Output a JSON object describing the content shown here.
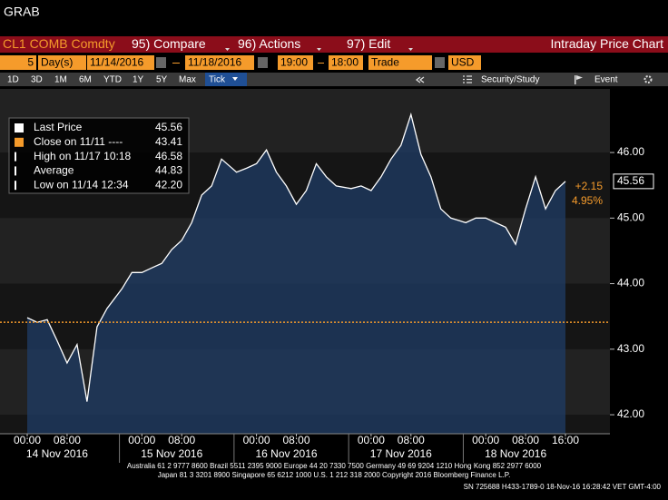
{
  "header": {
    "title": "GRAB"
  },
  "menu": {
    "ticker": "CL1 COMB Comdty",
    "items": [
      "95) Compare",
      "96) Actions",
      "97) Edit"
    ],
    "chart_name": "Intraday Price Chart"
  },
  "controls": {
    "days": "5",
    "unit": "Day(s)",
    "start": "11/14/2016",
    "end": "11/18/2016",
    "from": "19:00",
    "to": "18:00",
    "field": "Trade",
    "currency": "USD"
  },
  "ranges": [
    "1D",
    "3D",
    "1M",
    "6M",
    "YTD",
    "1Y",
    "5Y",
    "Max",
    "Tick"
  ],
  "tools": [
    "Security/Study",
    "Event"
  ],
  "footer": [
    "Australia 61 2 9777 8600 Brazil 5511 2395 9000 Europe 44 20 7330 7500 Germany 49 69 9204 1210 Hong Kong 852 2977 6000",
    "Japan 81 3 3201 8900     Singapore 65 6212 1000     U.S. 1 212 318 2000     Copyright 2016 Bloomberg Finance L.P.",
    "SN 725688 H433-1789-0 18-Nov-16 16:28:42 VET   GMT-4:00"
  ],
  "chart_data": {
    "type": "line",
    "x": [
      "14 Nov 2016 00:00",
      "14 Nov 2016 02:00",
      "14 Nov 2016 04:00",
      "14 Nov 2016 06:00",
      "14 Nov 2016 08:00",
      "14 Nov 2016 10:00",
      "14 Nov 2016 12:00",
      "14 Nov 2016 14:00",
      "14 Nov 2016 16:00",
      "14 Nov 2016 20:00",
      "14 Nov 2016 22:00",
      "15 Nov 2016 00:00",
      "15 Nov 2016 02:00",
      "15 Nov 2016 04:00",
      "15 Nov 2016 06:00",
      "15 Nov 2016 08:00",
      "15 Nov 2016 10:00",
      "15 Nov 2016 12:00",
      "15 Nov 2016 14:00",
      "15 Nov 2016 16:00",
      "15 Nov 2016 20:00",
      "15 Nov 2016 22:00",
      "16 Nov 2016 00:00",
      "16 Nov 2016 02:00",
      "16 Nov 2016 04:00",
      "16 Nov 2016 06:00",
      "16 Nov 2016 08:00",
      "16 Nov 2016 10:00",
      "16 Nov 2016 12:00",
      "16 Nov 2016 14:00",
      "16 Nov 2016 16:00",
      "16 Nov 2016 20:00",
      "16 Nov 2016 22:00",
      "17 Nov 2016 00:00",
      "17 Nov 2016 02:00",
      "17 Nov 2016 04:00",
      "17 Nov 2016 06:00",
      "17 Nov 2016 08:00",
      "17 Nov 2016 10:00",
      "17 Nov 2016 12:00",
      "17 Nov 2016 14:00",
      "17 Nov 2016 16:00",
      "17 Nov 2016 20:00",
      "17 Nov 2016 22:00",
      "18 Nov 2016 00:00",
      "18 Nov 2016 02:00",
      "18 Nov 2016 04:00",
      "18 Nov 2016 06:00",
      "18 Nov 2016 08:00",
      "18 Nov 2016 10:00",
      "18 Nov 2016 12:00",
      "18 Nov 2016 14:00",
      "18 Nov 2016 16:00"
    ],
    "series": [
      {
        "name": "Last Price",
        "color": "#ffffff",
        "fill": "#1f3c66",
        "values": [
          43.48,
          43.41,
          43.45,
          43.13,
          42.79,
          43.07,
          42.2,
          43.34,
          43.62,
          43.92,
          44.17,
          44.17,
          44.24,
          44.31,
          44.52,
          44.66,
          44.93,
          45.35,
          45.49,
          45.9,
          45.7,
          45.76,
          45.83,
          46.04,
          45.7,
          45.49,
          45.21,
          45.42,
          45.83,
          45.63,
          45.49,
          45.45,
          45.49,
          45.42,
          45.63,
          45.9,
          46.11,
          46.58,
          45.97,
          45.63,
          45.14,
          45.0,
          44.93,
          45.0,
          45.0,
          44.93,
          44.86,
          44.6,
          45.14,
          45.63,
          45.14,
          45.42,
          45.56
        ]
      }
    ],
    "legend": [
      {
        "label": "Last Price",
        "value": 45.56,
        "value_label": "45.56",
        "color": "#ffffff"
      },
      {
        "label": "Close on 11/11 ----",
        "value": 43.41,
        "value_label": "43.41",
        "color": "#f59b2b"
      },
      {
        "label": "High on 11/17 10:18",
        "value": 46.58,
        "value_label": "46.58",
        "color": "#ffffff"
      },
      {
        "label": "Average",
        "value": 44.83,
        "value_label": "44.83",
        "color": "#ffffff"
      },
      {
        "label": "Low on 11/14 12:34",
        "value": 42.2,
        "value_label": "42.20",
        "color": "#ffffff"
      }
    ],
    "change": {
      "value": 2.15,
      "label": "+2.15"
    },
    "change_pct": {
      "value": 4.95,
      "label": "4.95%"
    },
    "xlim": [
      "14 Nov 2016 00:00",
      "18 Nov 2016 18:00"
    ],
    "xticks": [
      {
        "value": "14 Nov 2016 00:00",
        "label": "00:00"
      },
      {
        "value": "14 Nov 2016 08:00",
        "label": "08:00"
      },
      {
        "value": "15 Nov 2016 00:00",
        "label": "00:00"
      },
      {
        "value": "15 Nov 2016 08:00",
        "label": "08:00"
      },
      {
        "value": "16 Nov 2016 00:00",
        "label": "00:00"
      },
      {
        "value": "16 Nov 2016 08:00",
        "label": "08:00"
      },
      {
        "value": "17 Nov 2016 00:00",
        "label": "00:00"
      },
      {
        "value": "17 Nov 2016 08:00",
        "label": "08:00"
      },
      {
        "value": "18 Nov 2016 00:00",
        "label": "00:00"
      },
      {
        "value": "18 Nov 2016 08:00",
        "label": "08:00"
      },
      {
        "value": "18 Nov 2016 16:00",
        "label": "16:00"
      }
    ],
    "x_groups": [
      "14 Nov 2016",
      "15 Nov 2016",
      "16 Nov 2016",
      "17 Nov 2016",
      "18 Nov 2016"
    ],
    "ylim": [
      41.71,
      46.97
    ],
    "yticks": [
      {
        "value": 42,
        "label": "42.00"
      },
      {
        "value": 43,
        "label": "43.00"
      },
      {
        "value": 44,
        "label": "44.00"
      },
      {
        "value": 45,
        "label": "45.00"
      },
      {
        "value": 46,
        "label": "46.00"
      }
    ]
  }
}
